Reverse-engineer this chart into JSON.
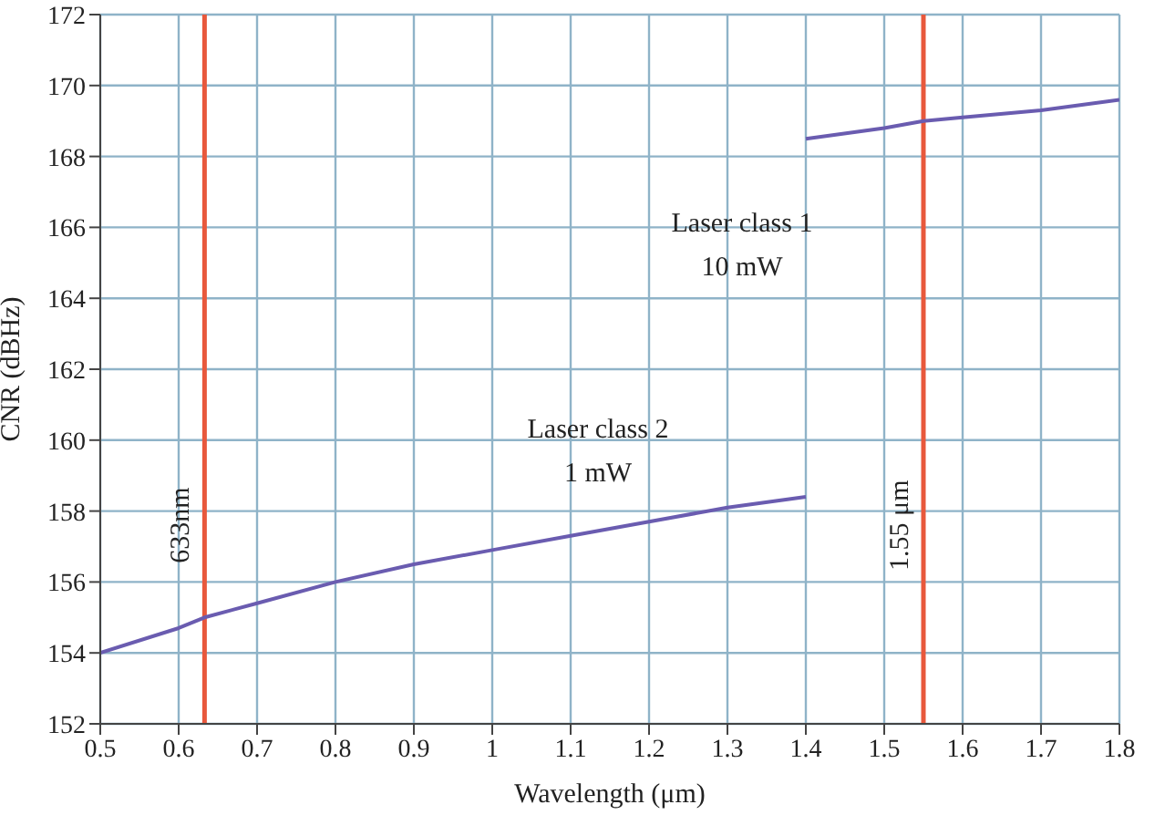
{
  "chart_data": {
    "type": "line",
    "xlabel": "Wavelength (μm)",
    "ylabel": "CNR (dBHz)",
    "xlim": [
      0.5,
      1.8
    ],
    "xticks": [
      0.5,
      0.6,
      0.7,
      0.8,
      0.9,
      1,
      1.1,
      1.2,
      1.3,
      1.4,
      1.5,
      1.6,
      1.7,
      1.8
    ],
    "ylim": [
      152,
      172
    ],
    "yticks": [
      152,
      154,
      156,
      158,
      160,
      162,
      164,
      166,
      168,
      170,
      172
    ],
    "grid": true,
    "marker": "none",
    "line_style": "solid",
    "series": [
      {
        "color": "#6a5cb0",
        "x": [
          0.5,
          0.6,
          0.633,
          0.7,
          0.8,
          0.9,
          1.0,
          1.1,
          1.2,
          1.3,
          1.4
        ],
        "values": [
          154,
          154.7,
          155,
          155.4,
          156,
          156.5,
          156.9,
          157.3,
          157.7,
          158.1,
          158.4
        ]
      },
      {
        "color": "#6a5cb0",
        "x": [
          1.4,
          1.5,
          1.55,
          1.6,
          1.7,
          1.8
        ],
        "values": [
          168.5,
          168.8,
          169,
          169.1,
          169.3,
          169.6
        ]
      }
    ],
    "ref_lines": [
      {
        "axis": "x",
        "value": 0.633,
        "label": "633nm",
        "color": "#e8583c"
      },
      {
        "axis": "x",
        "value": 1.55,
        "label": "1.55 μm",
        "color": "#e8583c"
      }
    ],
    "annotations": [
      {
        "text": "Laser class 2\n1 mW",
        "x": 1.1,
        "y": 157.3
      },
      {
        "text": "Laser class 1\n10 mW",
        "x": 1.4,
        "y": 168.5
      }
    ]
  }
}
